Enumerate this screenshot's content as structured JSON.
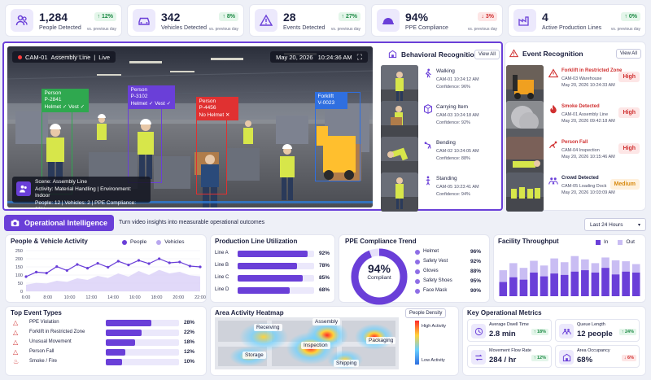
{
  "kpis": [
    {
      "value": "1,284",
      "label": "People Detected",
      "delta": "12%",
      "dir": "up",
      "vs": "vs. previous day",
      "icon": "people-icon"
    },
    {
      "value": "342",
      "label": "Vehicles Detected",
      "delta": "8%",
      "dir": "up",
      "vs": "vs. previous day",
      "icon": "car-icon"
    },
    {
      "value": "28",
      "label": "Events Detected",
      "delta": "27%",
      "dir": "up",
      "vs": "vs. previous day",
      "icon": "warning-icon"
    },
    {
      "value": "94%",
      "label": "PPE Compliance",
      "delta": "3%",
      "dir": "down",
      "vs": "vs. previous day",
      "icon": "helmet-icon"
    },
    {
      "value": "4",
      "label": "Active Production Lines",
      "delta": "0%",
      "dir": "up",
      "vs": "vs. previous day",
      "icon": "factory-icon"
    }
  ],
  "video": {
    "cam": "CAM-01",
    "location": "Assembly Line",
    "status": "Live",
    "date": "May 20, 2026",
    "time": "10:24:36 AM",
    "detections": [
      {
        "l1": "Person",
        "l2": "P-2841",
        "l3": "Helmet ✓  Vest ✓",
        "color": "#2fa84f"
      },
      {
        "l1": "Person",
        "l2": "P-3102",
        "l3": "Helmet ✓  Vest ✓",
        "color": "#6a3fd8"
      },
      {
        "l1": "Person",
        "l2": "P-4456",
        "l3": "No Helmet ✕",
        "color": "#e03131"
      },
      {
        "l1": "Forklift",
        "l2": "V-0023",
        "l3": "",
        "color": "#2f6fe0"
      }
    ],
    "scene": {
      "title": "Scene: Assembly Line",
      "line2": "Activity: Material Handling  |  Environment: Indoor",
      "line3": "People: 12  |  Vehicles: 2  |  PPE Compliance: 92%"
    }
  },
  "behavioral": {
    "title": "Behavioral Recognition",
    "view_all": "View All",
    "items": [
      {
        "name": "Walking",
        "meta": "CAM-01    10:24:12 AM",
        "conf": "Confidence: 96%"
      },
      {
        "name": "Carrying Item",
        "meta": "CAM-03    10:24:18 AM",
        "conf": "Confidence: 92%"
      },
      {
        "name": "Bending",
        "meta": "CAM-02    10:24:05 AM",
        "conf": "Confidence: 88%"
      },
      {
        "name": "Standing",
        "meta": "CAM-05    10:23:41 AM",
        "conf": "Confidence: 94%"
      }
    ]
  },
  "events": {
    "title": "Event Recognition",
    "view_all": "View All",
    "items": [
      {
        "name": "Forklift in Restricted Zone",
        "meta": "CAM-03    Warehouse",
        "date": "May 20, 2026  10:24:33 AM",
        "level": "High"
      },
      {
        "name": "Smoke Detected",
        "meta": "CAM-01    Assembly Line",
        "date": "May 20, 2026  09:42:18 AM",
        "level": "High"
      },
      {
        "name": "Person Fall",
        "meta": "CAM-04    Inspection",
        "date": "May 20, 2026  10:15:46 AM",
        "level": "High"
      },
      {
        "name": "Crowd Detected",
        "meta": "CAM-05    Loading Dock",
        "date": "May 20, 2026  10:03:09 AM",
        "level": "Medium"
      }
    ]
  },
  "oi": {
    "title": "Operational Intelligence",
    "subtitle": "Turn video insights into measurable operational outcomes",
    "range": "Last 24 Hours"
  },
  "activity": {
    "title": "People & Vehicle Activity",
    "legend_people": "People",
    "legend_vehicles": "Vehicles",
    "yticks": [
      "250",
      "200",
      "150",
      "100",
      "50",
      "0"
    ],
    "xticks": [
      "6:00",
      "8:00",
      "10:00",
      "12:00",
      "14:00",
      "16:00",
      "18:00",
      "20:00",
      "22:00"
    ]
  },
  "chart_data": [
    {
      "type": "line",
      "title": "People & Vehicle Activity",
      "x": [
        "6:00",
        "7:00",
        "8:00",
        "9:00",
        "10:00",
        "11:00",
        "12:00",
        "13:00",
        "14:00",
        "15:00",
        "16:00",
        "17:00",
        "18:00",
        "19:00",
        "20:00",
        "21:00",
        "22:00",
        "23:00"
      ],
      "series": [
        {
          "name": "People",
          "values": [
            90,
            118,
            112,
            152,
            128,
            165,
            142,
            172,
            148,
            185,
            162,
            190,
            170,
            200,
            175,
            180,
            155,
            150
          ]
        },
        {
          "name": "Vehicles",
          "values": [
            40,
            52,
            48,
            65,
            58,
            80,
            70,
            95,
            82,
            110,
            90,
            125,
            100,
            132,
            110,
            120,
            98,
            92
          ]
        }
      ],
      "ylim": [
        0,
        250
      ]
    },
    {
      "type": "bar",
      "title": "Production Line Utilization",
      "categories": [
        "Line A",
        "Line B",
        "Line C",
        "Line D"
      ],
      "values": [
        92,
        78,
        85,
        68
      ]
    },
    {
      "type": "pie",
      "title": "PPE Compliance Trend",
      "center_value": "94%",
      "center_label": "Compliant",
      "categories": [
        "Helmet",
        "Safety Vest",
        "Gloves",
        "Safety Shoes",
        "Face Mask"
      ],
      "values": [
        96,
        92,
        88,
        95,
        90
      ]
    },
    {
      "type": "bar",
      "title": "Facility Throughput",
      "series": [
        {
          "name": "In",
          "values": [
            55,
            70,
            60,
            75,
            65,
            80,
            72,
            85,
            78,
            70,
            82,
            76,
            74,
            68
          ]
        },
        {
          "name": "Out",
          "values": [
            30,
            40,
            35,
            50,
            42,
            48,
            45,
            52,
            55,
            50,
            60,
            46,
            52,
            50
          ]
        }
      ]
    },
    {
      "type": "bar",
      "title": "Top Event Types",
      "categories": [
        "PPE Violation",
        "Forklift in Restricted Zone",
        "Unusual Movement",
        "Person Fall",
        "Smoke / Fire"
      ],
      "values": [
        28,
        22,
        18,
        12,
        10
      ]
    }
  ],
  "utilization": {
    "title": "Production Line Utilization",
    "rows": [
      {
        "label": "Line A",
        "pct": "92%"
      },
      {
        "label": "Line B",
        "pct": "78%"
      },
      {
        "label": "Line C",
        "pct": "85%"
      },
      {
        "label": "Line D",
        "pct": "68%"
      }
    ]
  },
  "ppe": {
    "title": "PPE Compliance Trend",
    "center": "94%",
    "center_label": "Compliant",
    "rows": [
      {
        "label": "Helmet",
        "pct": "96%"
      },
      {
        "label": "Safety Vest",
        "pct": "92%"
      },
      {
        "label": "Gloves",
        "pct": "88%"
      },
      {
        "label": "Safety Shoes",
        "pct": "95%"
      },
      {
        "label": "Face Mask",
        "pct": "90%"
      }
    ]
  },
  "throughput": {
    "title": "Facility Throughput",
    "legend_in": "In",
    "legend_out": "Out"
  },
  "top_events": {
    "title": "Top Event Types",
    "rows": [
      {
        "label": "PPE Violation",
        "pct": "28%"
      },
      {
        "label": "Forklift in Restricted Zone",
        "pct": "22%"
      },
      {
        "label": "Unusual Movement",
        "pct": "18%"
      },
      {
        "label": "Person Fall",
        "pct": "12%"
      },
      {
        "label": "Smoke / Fire",
        "pct": "10%"
      }
    ]
  },
  "heatmap": {
    "title": "Area Activity Heatmap",
    "legend_title": "People Density",
    "high": "High Activity",
    "low": "Low Activity",
    "zones": [
      "Receiving",
      "Assembly",
      "Packaging",
      "Inspection",
      "Storage",
      "Shipping"
    ]
  },
  "metrics": {
    "title": "Key Operational Metrics",
    "items": [
      {
        "label": "Average Dwell Time",
        "value": "2.8 min",
        "delta": "18%",
        "dir": "up",
        "icon": "clock-icon"
      },
      {
        "label": "Queue Length",
        "value": "12 people",
        "delta": "24%",
        "dir": "up",
        "icon": "queue-icon"
      },
      {
        "label": "Movement Flow Rate",
        "value": "284 / hr",
        "delta": "12%",
        "dir": "up",
        "icon": "flow-icon"
      },
      {
        "label": "Area Occupancy",
        "value": "68%",
        "delta": "6%",
        "dir": "down",
        "icon": "occupancy-icon"
      }
    ]
  }
}
